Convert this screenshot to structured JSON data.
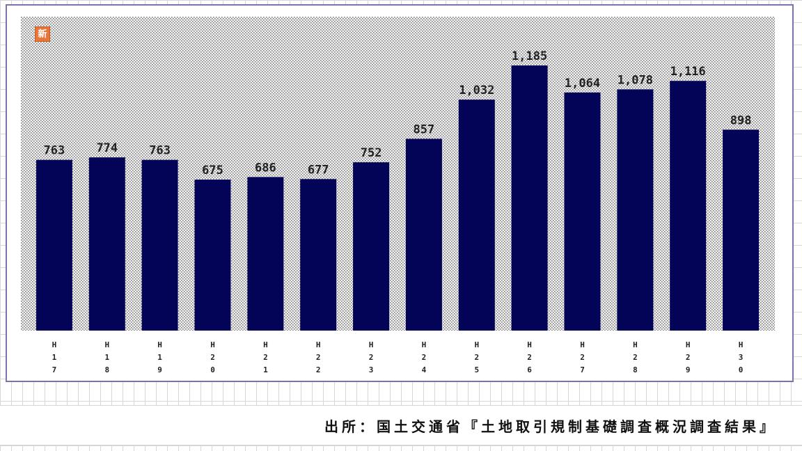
{
  "badge_text": "新",
  "source_text": "出所：国土交通省『土地取引規制基礎調査概況調査結果』",
  "colors": {
    "bar": "#030357",
    "frame": "#7a74ad",
    "badge": "#e8763a"
  },
  "chart_data": {
    "type": "bar",
    "title": "",
    "xlabel": "",
    "ylabel": "",
    "categories": [
      "H17",
      "H18",
      "H19",
      "H20",
      "H21",
      "H22",
      "H23",
      "H24",
      "H25",
      "H26",
      "H27",
      "H28",
      "H29",
      "H30"
    ],
    "values": [
      763,
      774,
      763,
      675,
      686,
      677,
      752,
      857,
      1032,
      1185,
      1064,
      1078,
      1116,
      898
    ],
    "value_labels": [
      "763",
      "774",
      "763",
      "675",
      "686",
      "677",
      "752",
      "857",
      "1,032",
      "1,185",
      "1,064",
      "1,078",
      "1,116",
      "898"
    ],
    "ylim": [
      0,
      1300
    ],
    "grid": false,
    "legend": "none"
  }
}
